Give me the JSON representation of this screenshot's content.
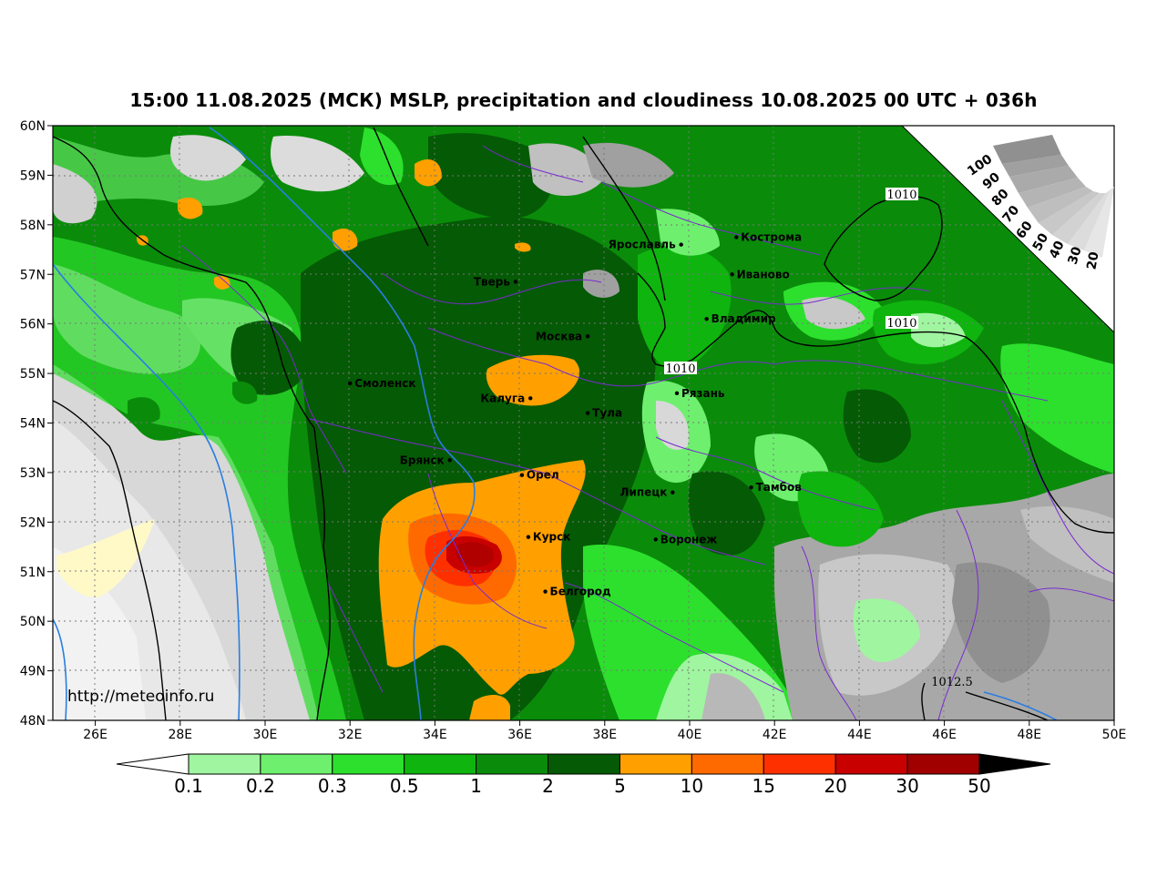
{
  "title": "15:00 11.08.2025 (МСК) MSLP, precipitation and cloudiness 10.08.2025 00 UTC + 036h",
  "url": "http://meteoinfo.ru",
  "lat_labels": [
    "60N",
    "59N",
    "58N",
    "57N",
    "56N",
    "55N",
    "54N",
    "53N",
    "52N",
    "51N",
    "50N",
    "49N",
    "48N"
  ],
  "lon_labels": [
    "26E",
    "28E",
    "30E",
    "32E",
    "34E",
    "36E",
    "38E",
    "40E",
    "42E",
    "44E",
    "46E",
    "48E",
    "50E"
  ],
  "cities": [
    {
      "name": "Кострома",
      "lon": 41.1,
      "lat": 57.75
    },
    {
      "name": "Ярославль",
      "lon": 39.8,
      "lat": 57.6
    },
    {
      "name": "Иваново",
      "lon": 41.0,
      "lat": 57.0
    },
    {
      "name": "Тверь",
      "lon": 35.9,
      "lat": 56.85
    },
    {
      "name": "Владимир",
      "lon": 40.4,
      "lat": 56.1
    },
    {
      "name": "Москва",
      "lon": 37.6,
      "lat": 55.75
    },
    {
      "name": "Смоленск",
      "lon": 32.0,
      "lat": 54.8
    },
    {
      "name": "Калуга",
      "lon": 36.25,
      "lat": 54.5
    },
    {
      "name": "Рязань",
      "lon": 39.7,
      "lat": 54.6
    },
    {
      "name": "Тула",
      "lon": 37.6,
      "lat": 54.2
    },
    {
      "name": "Брянск",
      "lon": 34.35,
      "lat": 53.25
    },
    {
      "name": "Орел",
      "lon": 36.05,
      "lat": 52.95
    },
    {
      "name": "Липецк",
      "lon": 39.6,
      "lat": 52.6
    },
    {
      "name": "Тамбов",
      "lon": 41.45,
      "lat": 52.7
    },
    {
      "name": "Курск",
      "lon": 36.2,
      "lat": 51.7
    },
    {
      "name": "Воронеж",
      "lon": 39.2,
      "lat": 51.65
    },
    {
      "name": "Белгород",
      "lon": 36.6,
      "lat": 50.6
    }
  ],
  "isobars": [
    "1010",
    "1010",
    "1010",
    "1012.5"
  ],
  "colorbar": {
    "labels": [
      "0.1",
      "0.2",
      "0.3",
      "0.5",
      "1",
      "2",
      "5",
      "10",
      "15",
      "20",
      "30",
      "50"
    ],
    "colors": [
      "#ffffff",
      "#a0f5a0",
      "#6ef06e",
      "#2de02d",
      "#0fb40f",
      "#0a8c0a",
      "#055a05",
      "#ffa000",
      "#ff6a00",
      "#ff3000",
      "#c80000",
      "#a00000",
      "#000000"
    ]
  },
  "cloud_scale": {
    "labels": [
      "100",
      "90",
      "80",
      "70",
      "60",
      "50",
      "40",
      "30",
      "20"
    ],
    "colors": [
      "#909090",
      "#a0a0a0",
      "#aaaaaa",
      "#b4b4b4",
      "#bebebe",
      "#c8c8c8",
      "#d2d2d2",
      "#dcdcdc",
      "#e6e6e6"
    ]
  }
}
